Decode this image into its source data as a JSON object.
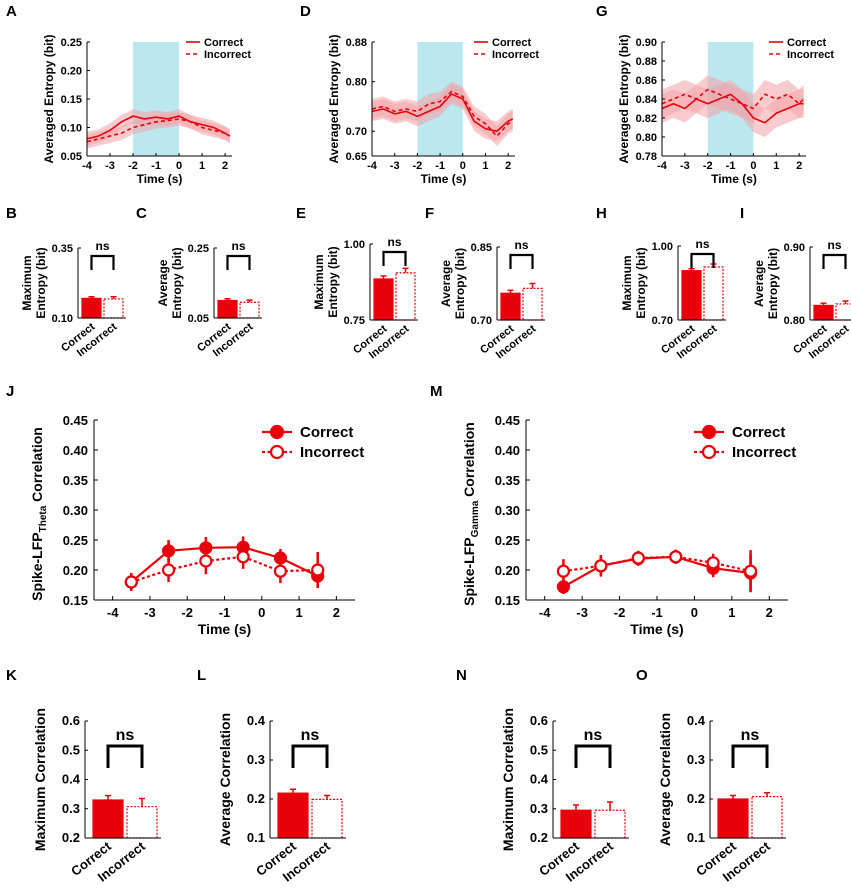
{
  "chart_data": [
    {
      "id": "A",
      "type": "line",
      "panel_label": "A",
      "xlabel": "Time (s)",
      "ylabel": "Averaged Entropy (bit)",
      "xlim": [
        -4,
        2.3
      ],
      "ylim": [
        0.05,
        0.25
      ],
      "xticks": [
        -4,
        -3,
        -2,
        -1,
        0,
        1,
        2
      ],
      "yticks": [
        "0.05",
        "0.10",
        "0.15",
        "0.20",
        "0.25"
      ],
      "shade": [
        -2,
        0
      ],
      "legend": [
        "Correct",
        "Incorrect"
      ],
      "x": [
        -4,
        -3.5,
        -3,
        -2.5,
        -2,
        -1.5,
        -1,
        -0.5,
        0,
        0.5,
        1,
        1.5,
        2,
        2.2
      ],
      "series": [
        {
          "name": "Correct",
          "values": [
            0.08,
            0.085,
            0.095,
            0.11,
            0.12,
            0.115,
            0.118,
            0.115,
            0.12,
            0.11,
            0.105,
            0.1,
            0.09,
            0.085
          ],
          "err": 0.012
        },
        {
          "name": "Incorrect",
          "values": [
            0.075,
            0.08,
            0.085,
            0.09,
            0.1,
            0.105,
            0.11,
            0.112,
            0.115,
            0.11,
            0.1,
            0.095,
            0.09,
            0.085
          ],
          "err": 0.012
        }
      ]
    },
    {
      "id": "D",
      "type": "line",
      "panel_label": "D",
      "xlabel": "Time (s)",
      "ylabel": "Averaged Entropy (bit)",
      "xlim": [
        -4,
        2.3
      ],
      "ylim": [
        0.65,
        0.88
      ],
      "xticks": [
        -4,
        -3,
        -2,
        -1,
        0,
        1,
        2
      ],
      "yticks": [
        "0.65",
        "0.70",
        "0.80",
        "0.88"
      ],
      "shade": [
        -2,
        0
      ],
      "legend": [
        "Correct",
        "Incorrect"
      ],
      "x": [
        -4,
        -3.5,
        -3,
        -2.5,
        -2,
        -1.5,
        -1,
        -0.5,
        0,
        0.5,
        1,
        1.5,
        2,
        2.2
      ],
      "series": [
        {
          "name": "Correct",
          "values": [
            0.74,
            0.745,
            0.735,
            0.74,
            0.73,
            0.74,
            0.75,
            0.775,
            0.765,
            0.72,
            0.705,
            0.7,
            0.72,
            0.725
          ],
          "err": 0.02
        },
        {
          "name": "Incorrect",
          "values": [
            0.745,
            0.75,
            0.74,
            0.745,
            0.74,
            0.755,
            0.76,
            0.78,
            0.77,
            0.73,
            0.715,
            0.69,
            0.715,
            0.72
          ],
          "err": 0.02
        }
      ]
    },
    {
      "id": "G",
      "type": "line",
      "panel_label": "G",
      "xlabel": "Time (s)",
      "ylabel": "Averaged Entropy (bit)",
      "xlim": [
        -4,
        2.3
      ],
      "ylim": [
        0.78,
        0.9
      ],
      "xticks": [
        -4,
        -3,
        -2,
        -1,
        0,
        1,
        2
      ],
      "yticks": [
        "0.78",
        "0.80",
        "0.82",
        "0.84",
        "0.86",
        "0.88",
        "0.90"
      ],
      "shade": [
        -2,
        0
      ],
      "legend": [
        "Correct",
        "Incorrect"
      ],
      "x": [
        -4,
        -3.5,
        -3,
        -2.5,
        -2,
        -1.5,
        -1,
        -0.5,
        0,
        0.5,
        1,
        1.5,
        2,
        2.2
      ],
      "series": [
        {
          "name": "Correct",
          "values": [
            0.83,
            0.835,
            0.83,
            0.84,
            0.835,
            0.84,
            0.845,
            0.835,
            0.82,
            0.815,
            0.825,
            0.83,
            0.835,
            0.835
          ],
          "err": 0.015
        },
        {
          "name": "Incorrect",
          "values": [
            0.835,
            0.84,
            0.845,
            0.84,
            0.85,
            0.845,
            0.84,
            0.835,
            0.83,
            0.845,
            0.84,
            0.845,
            0.835,
            0.84
          ],
          "err": 0.015
        }
      ]
    },
    {
      "id": "B",
      "type": "bar",
      "panel_label": "B",
      "ylabel": [
        "Maximum",
        "Entropy (bit)"
      ],
      "ylim": [
        0.1,
        0.35
      ],
      "yticks": [
        "0.10",
        "0.35"
      ],
      "categories": [
        "Correct",
        "Incorrect"
      ],
      "values": [
        0.17,
        0.168
      ],
      "errors": [
        0.006,
        0.008
      ],
      "annotation": "ns"
    },
    {
      "id": "C",
      "type": "bar",
      "panel_label": "C",
      "ylabel": [
        "Average",
        "Entropy (bit)"
      ],
      "ylim": [
        0.05,
        0.25
      ],
      "yticks": [
        "0.05",
        "0.25"
      ],
      "categories": [
        "Correct",
        "Incorrect"
      ],
      "values": [
        0.1,
        0.095
      ],
      "errors": [
        0.005,
        0.006
      ],
      "annotation": "ns"
    },
    {
      "id": "E",
      "type": "bar",
      "panel_label": "E",
      "ylabel": [
        "Maximum",
        "Entropy (bit)"
      ],
      "ylim": [
        0.75,
        1.0
      ],
      "yticks": [
        "0.75",
        "1.00"
      ],
      "categories": [
        "Correct",
        "Incorrect"
      ],
      "values": [
        0.885,
        0.905
      ],
      "errors": [
        0.01,
        0.015
      ],
      "annotation": "ns"
    },
    {
      "id": "F",
      "type": "bar",
      "panel_label": "F",
      "ylabel": [
        "Average",
        "Entropy (bit)"
      ],
      "ylim": [
        0.7,
        0.85
      ],
      "yticks": [
        "0.70",
        "0.85"
      ],
      "categories": [
        "Correct",
        "Incorrect"
      ],
      "values": [
        0.755,
        0.765
      ],
      "errors": [
        0.006,
        0.01
      ],
      "annotation": "ns"
    },
    {
      "id": "H",
      "type": "bar",
      "panel_label": "H",
      "ylabel": [
        "Maximum",
        "Entropy (bit)"
      ],
      "ylim": [
        0.7,
        1.0
      ],
      "yticks": [
        "0.70",
        "1.00"
      ],
      "categories": [
        "Correct",
        "Incorrect"
      ],
      "values": [
        0.9,
        0.915
      ],
      "errors": [
        0.008,
        0.012
      ],
      "annotation": "ns"
    },
    {
      "id": "I",
      "type": "bar",
      "panel_label": "I",
      "ylabel": [
        "Average",
        "Entropy (bit)"
      ],
      "ylim": [
        0.8,
        0.9
      ],
      "yticks": [
        "0.80",
        "0.90"
      ],
      "categories": [
        "Correct",
        "Incorrect"
      ],
      "values": [
        0.82,
        0.822
      ],
      "errors": [
        0.003,
        0.004
      ],
      "annotation": "ns"
    },
    {
      "id": "J",
      "type": "line",
      "panel_label": "J",
      "xlabel": "Time (s)",
      "ylabel_main": "Spike-LFP",
      "ylabel_sub": "Theta",
      "ylabel_tail": " Correlation",
      "xlim": [
        -4.5,
        2.5
      ],
      "ylim": [
        0.15,
        0.45
      ],
      "xticks": [
        -4,
        -3,
        -2,
        -1,
        0,
        1,
        2
      ],
      "yticks": [
        "0.15",
        "0.20",
        "0.25",
        "0.30",
        "0.35",
        "0.40",
        "0.45"
      ],
      "legend": [
        "Correct",
        "Incorrect"
      ],
      "x": [
        -3.5,
        -2.5,
        -1.5,
        -0.5,
        0.5,
        1.5
      ],
      "series": [
        {
          "name": "Correct",
          "values": [
            0.18,
            0.232,
            0.237,
            0.238,
            0.22,
            0.19
          ],
          "errors": [
            0.015,
            0.018,
            0.018,
            0.018,
            0.015,
            0.02
          ]
        },
        {
          "name": "Incorrect",
          "values": [
            0.18,
            0.2,
            0.215,
            0.222,
            0.198,
            0.2
          ],
          "errors": [
            0.015,
            0.02,
            0.022,
            0.02,
            0.02,
            0.03
          ]
        }
      ]
    },
    {
      "id": "M",
      "type": "line",
      "panel_label": "M",
      "xlabel": "Time (s)",
      "ylabel_main": "Spike-LFP",
      "ylabel_sub": "Gamma",
      "ylabel_tail": " Correlation",
      "xlim": [
        -4.5,
        2.5
      ],
      "ylim": [
        0.15,
        0.45
      ],
      "xticks": [
        -4,
        -3,
        -2,
        -1,
        0,
        1,
        2
      ],
      "yticks": [
        "0.15",
        "0.20",
        "0.25",
        "0.30",
        "0.35",
        "0.40",
        "0.45"
      ],
      "legend": [
        "Correct",
        "Incorrect"
      ],
      "x": [
        -3.5,
        -2.5,
        -1.5,
        -0.5,
        0.5,
        1.5
      ],
      "series": [
        {
          "name": "Correct",
          "values": [
            0.172,
            0.207,
            0.219,
            0.222,
            0.203,
            0.195
          ],
          "errors": [
            0.012,
            0.015,
            0.012,
            0.012,
            0.015,
            0.03
          ]
        },
        {
          "name": "Incorrect",
          "values": [
            0.198,
            0.207,
            0.22,
            0.222,
            0.212,
            0.198
          ],
          "errors": [
            0.02,
            0.018,
            0.012,
            0.012,
            0.015,
            0.035
          ]
        }
      ]
    },
    {
      "id": "K",
      "type": "bar",
      "panel_label": "K",
      "ylabel": [
        "Maximum Correlation"
      ],
      "ylim": [
        0.2,
        0.6
      ],
      "yticks": [
        "0.2",
        "0.3",
        "0.4",
        "0.5",
        "0.6"
      ],
      "categories": [
        "Correct",
        "Incorrect"
      ],
      "values": [
        0.33,
        0.307
      ],
      "errors": [
        0.015,
        0.028
      ],
      "annotation": "ns"
    },
    {
      "id": "L",
      "type": "bar",
      "panel_label": "L",
      "ylabel": [
        "Average Correlation"
      ],
      "ylim": [
        0.1,
        0.4
      ],
      "yticks": [
        "0.1",
        "0.2",
        "0.3",
        "0.4"
      ],
      "categories": [
        "Correct",
        "Incorrect"
      ],
      "values": [
        0.215,
        0.199
      ],
      "errors": [
        0.01,
        0.01
      ],
      "annotation": "ns"
    },
    {
      "id": "N",
      "type": "bar",
      "panel_label": "N",
      "ylabel": [
        "Maximum Correlation"
      ],
      "ylim": [
        0.2,
        0.6
      ],
      "yticks": [
        "0.2",
        "0.3",
        "0.4",
        "0.5",
        "0.6"
      ],
      "categories": [
        "Correct",
        "Incorrect"
      ],
      "values": [
        0.295,
        0.295
      ],
      "errors": [
        0.018,
        0.028
      ],
      "annotation": "ns"
    },
    {
      "id": "O",
      "type": "bar",
      "panel_label": "O",
      "ylabel": [
        "Average Correlation"
      ],
      "ylim": [
        0.1,
        0.4
      ],
      "yticks": [
        "0.1",
        "0.2",
        "0.3",
        "0.4"
      ],
      "categories": [
        "Correct",
        "Incorrect"
      ],
      "values": [
        0.2,
        0.206
      ],
      "errors": [
        0.009,
        0.01
      ],
      "annotation": "ns"
    }
  ],
  "colors": {
    "red": "#e8000a",
    "band": "#f3a3a8",
    "shade": "#bde7ef"
  }
}
